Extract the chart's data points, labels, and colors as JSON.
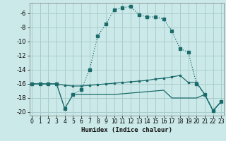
{
  "xlabel": "Humidex (Indice chaleur)",
  "x_ticks": [
    0,
    1,
    2,
    3,
    4,
    5,
    6,
    7,
    8,
    9,
    10,
    11,
    12,
    13,
    14,
    15,
    16,
    17,
    18,
    19,
    20,
    21,
    22,
    23
  ],
  "ylim": [
    -20.5,
    -4.5
  ],
  "xlim": [
    -0.3,
    23.3
  ],
  "yticks": [
    -20,
    -18,
    -16,
    -14,
    -12,
    -10,
    -8,
    -6
  ],
  "bg_color": "#cce9e9",
  "grid_color": "#aacccc",
  "line_color": "#1a6b6b",
  "line1_dotted": {
    "x": [
      0,
      1,
      2,
      3,
      4,
      5,
      6,
      7,
      8,
      9,
      10,
      11,
      12,
      13,
      14,
      15,
      16,
      17,
      18,
      19,
      20,
      21,
      22,
      23
    ],
    "y": [
      -16,
      -16,
      -16,
      -16,
      -19.5,
      -17.5,
      -16.8,
      -14,
      -9.2,
      -7.5,
      -5.5,
      -5.2,
      -5.0,
      -6.2,
      -6.5,
      -6.5,
      -6.8,
      -8.5,
      -11.0,
      -11.5,
      -16.0,
      -17.5,
      -19.8,
      -18.5
    ]
  },
  "line2_flat": {
    "x": [
      0,
      1,
      2,
      3,
      4,
      5,
      6,
      7,
      8,
      9,
      10,
      11,
      12,
      13,
      14,
      15,
      16,
      17,
      18,
      19,
      20,
      21,
      22,
      23
    ],
    "y": [
      -16,
      -16,
      -16,
      -16,
      -16.2,
      -16.3,
      -16.3,
      -16.2,
      -16.1,
      -16.0,
      -15.9,
      -15.8,
      -15.7,
      -15.6,
      -15.5,
      -15.3,
      -15.2,
      -15.0,
      -14.8,
      -15.8,
      -15.8,
      -17.5,
      -19.8,
      -18.5
    ]
  },
  "line3_flat": {
    "x": [
      0,
      1,
      2,
      3,
      4,
      5,
      6,
      7,
      8,
      9,
      10,
      11,
      12,
      13,
      14,
      15,
      16,
      17,
      18,
      19,
      20,
      21,
      22,
      23
    ],
    "y": [
      -16,
      -16,
      -16,
      -16,
      -19.5,
      -17.5,
      -17.5,
      -17.5,
      -17.5,
      -17.5,
      -17.5,
      -17.4,
      -17.3,
      -17.2,
      -17.1,
      -17.0,
      -16.9,
      -18.0,
      -18.0,
      -18.0,
      -18.0,
      -17.5,
      -19.8,
      -18.5
    ]
  }
}
